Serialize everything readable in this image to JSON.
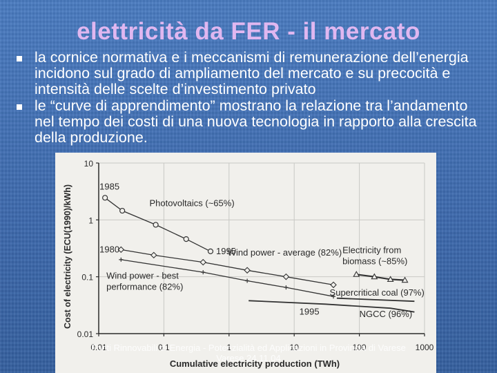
{
  "slide": {
    "title": "elettricità da FER - il mercato",
    "bullets": [
      "la cornice normativa e i meccanismi di remunerazione dell’energia incidono sul grado di ampliamento del mercato e su precocità e intensità delle scelte d’investimento privato",
      "le “curve di apprendimento” mostrano la relazione tra l’andamento nel tempo dei costi di una nuova tecnologia in rapporto alla crescita della produzione."
    ],
    "footer": [
      "Fonti Rinnovabili di Energia - Potenzialità ed Applicazioni in Provincia di Varese",
      "Varese 24.11.04"
    ]
  },
  "chart_data": {
    "type": "line",
    "xlabel": "Cumulative electricity production (TWh)",
    "ylabel": "Cost of electricity (ECU(1990)/kWh)",
    "xscale": "log",
    "yscale": "log",
    "xlim": [
      0.01,
      1000
    ],
    "ylim": [
      0.01,
      10
    ],
    "xticks": [
      {
        "value": 0.01,
        "label": "0.01"
      },
      {
        "value": 0.1,
        "label": "0.1"
      },
      {
        "value": 1,
        "label": "1"
      },
      {
        "value": 10,
        "label": "10"
      },
      {
        "value": 100,
        "label": "100"
      },
      {
        "value": 1000,
        "label": "1000"
      }
    ],
    "yticks": [
      {
        "value": 10,
        "label": "10"
      },
      {
        "value": 1,
        "label": "1"
      },
      {
        "value": 0.1,
        "label": "0.1"
      },
      {
        "value": 0.01,
        "label": "0.01"
      }
    ],
    "series": [
      {
        "name": "Photovoltaics (~65%)",
        "marker": "circle",
        "points": [
          [
            0.0125,
            2.45
          ],
          [
            0.023,
            1.45
          ],
          [
            0.075,
            0.82
          ],
          [
            0.22,
            0.46
          ],
          [
            0.52,
            0.28
          ]
        ]
      },
      {
        "name": "Wind power - average (82%)",
        "marker": "diamond",
        "points": [
          [
            0.022,
            0.3
          ],
          [
            0.07,
            0.24
          ],
          [
            0.4,
            0.18
          ],
          [
            1.9,
            0.13
          ],
          [
            7.5,
            0.1
          ],
          [
            40,
            0.072
          ]
        ]
      },
      {
        "name": "Wind power - best performance (82%)",
        "marker": "plus",
        "points": [
          [
            0.022,
            0.2
          ],
          [
            0.4,
            0.12
          ],
          [
            1.9,
            0.085
          ],
          [
            7.5,
            0.065
          ],
          [
            40,
            0.045
          ]
        ]
      },
      {
        "name": "Electricity from biomass (~85%)",
        "marker": "triangle",
        "points": [
          [
            90,
            0.11
          ],
          [
            170,
            0.1
          ],
          [
            300,
            0.09
          ],
          [
            500,
            0.087
          ]
        ]
      },
      {
        "name": "Supercritical coal (97%)",
        "marker": "none",
        "points": [
          [
            45,
            0.042
          ],
          [
            700,
            0.037
          ]
        ]
      },
      {
        "name": "NGCC (96%)",
        "marker": "none",
        "points": [
          [
            2,
            0.038
          ],
          [
            30,
            0.033
          ],
          [
            300,
            0.028
          ],
          [
            700,
            0.024
          ]
        ]
      }
    ],
    "annotations": [
      {
        "text": "1985",
        "at": [
          0.0125,
          2.45
        ]
      },
      {
        "text": "1995",
        "at": [
          0.52,
          0.28
        ]
      },
      {
        "text": "1980",
        "at": [
          0.022,
          0.3
        ]
      },
      {
        "text": "1995",
        "at": [
          40,
          0.04
        ]
      }
    ]
  }
}
